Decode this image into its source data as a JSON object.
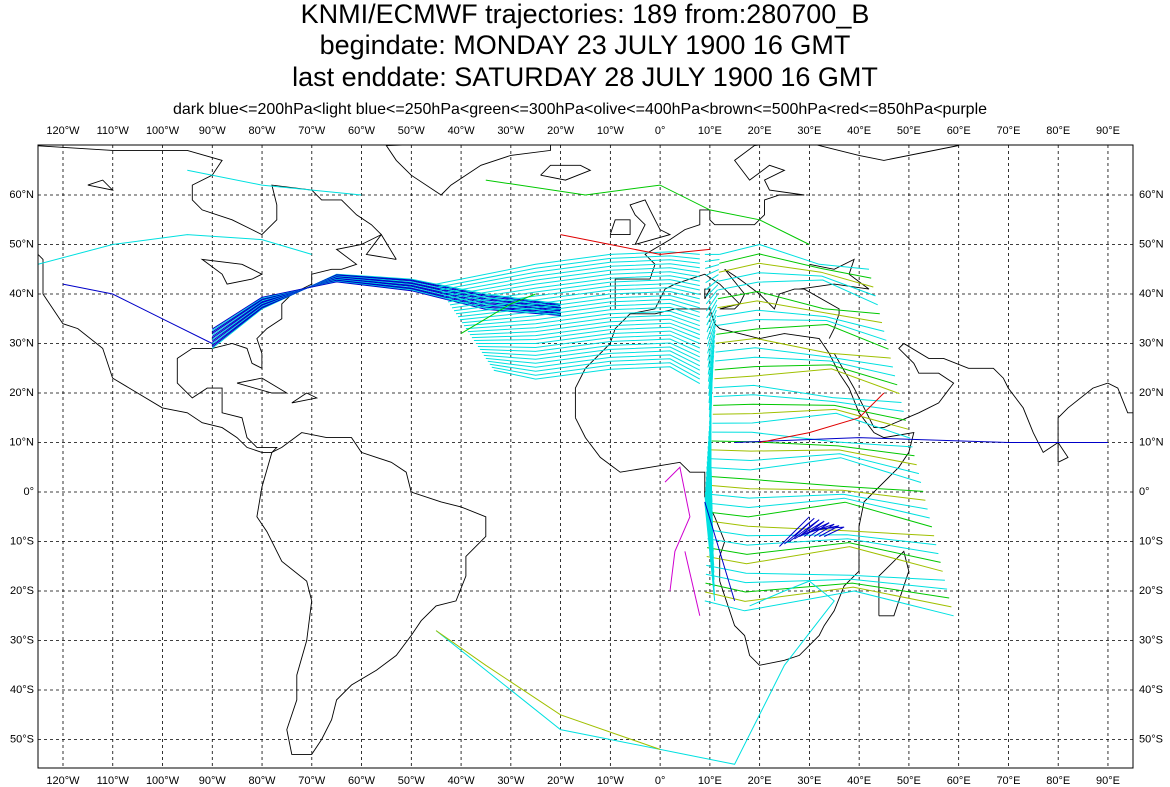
{
  "title_lines": [
    "KNMI/ECMWF trajectories:  189 from:280700_B",
    "begindate:  MONDAY    23 JULY      1900 16 GMT",
    "last enddate:  SATURDAY  28 JULY      1900 16 GMT"
  ],
  "legend": "dark blue<=200hPa<light blue<=250hPa<green<=300hPa<olive<=400hPa<brown<=500hPa<red<=850hPa<purple",
  "map": {
    "lon_labels": [
      "120°W",
      "110°W",
      "100°W",
      "90°W",
      "80°W",
      "70°W",
      "60°W",
      "50°W",
      "40°W",
      "30°W",
      "20°W",
      "10°W",
      "0°",
      "10°E",
      "20°E",
      "30°E",
      "40°E",
      "50°E",
      "60°E",
      "70°E",
      "80°E",
      "90°E"
    ],
    "lat_labels": [
      "60°N",
      "50°N",
      "40°N",
      "30°N",
      "20°N",
      "10°N",
      "0°",
      "10°S",
      "20°S",
      "30°S",
      "40°S",
      "50°S"
    ]
  }
}
